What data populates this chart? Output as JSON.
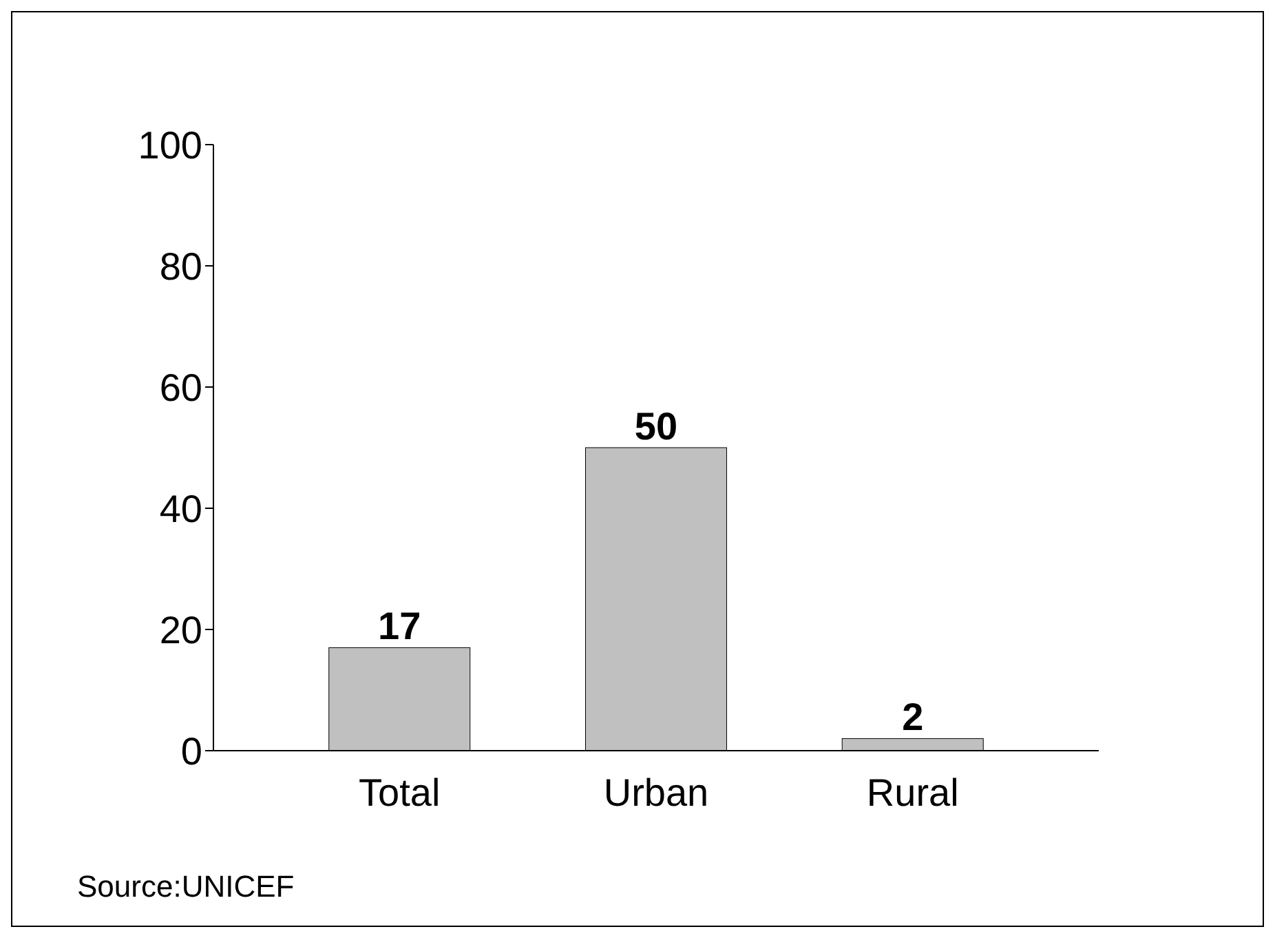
{
  "chart_data": {
    "type": "bar",
    "categories": [
      "Total",
      "Urban",
      "Rural"
    ],
    "values": [
      17,
      50,
      2
    ],
    "color": "#c0c0c0",
    "ylim": [
      0,
      100
    ],
    "yticks": [
      0,
      20,
      40,
      60,
      80,
      100
    ],
    "grid": false,
    "data_labels": true,
    "annotations": [
      "Source:UNICEF"
    ]
  }
}
